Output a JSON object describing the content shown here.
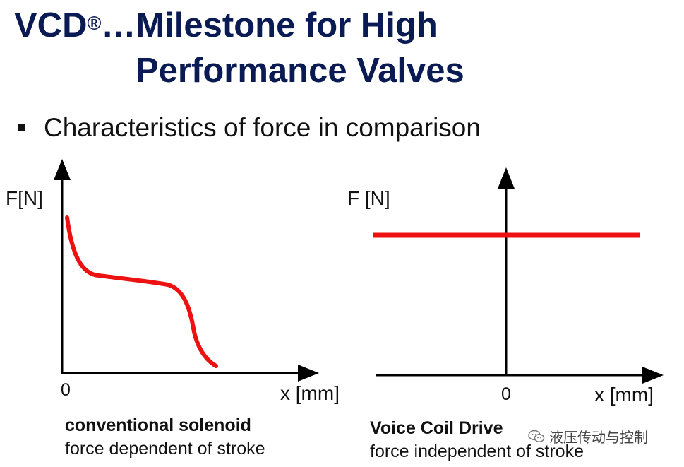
{
  "title": {
    "line1_prefix": "VCD",
    "registered": "®",
    "line1_suffix": "…Milestone for High",
    "line2": "Performance Valves"
  },
  "bullet": "Characteristics of force in comparison",
  "colors": {
    "title": "#0a1a52",
    "curve": "#ee1111",
    "axis": "#000000"
  },
  "chart_data": [
    {
      "type": "line",
      "ylabel": "F[N]",
      "xlabel": "x [mm]",
      "origin_label": "0",
      "caption_bold": "conventional solenoid",
      "caption": "force dependent of stroke",
      "description_shape": "falling-plateau-falling",
      "series": [
        {
          "points": [
            [
              0.05,
              0.98
            ],
            [
              0.18,
              0.66
            ],
            [
              0.6,
              0.56
            ],
            [
              0.8,
              0.36
            ],
            [
              1.0,
              0.06
            ]
          ]
        }
      ]
    },
    {
      "type": "line",
      "ylabel": "F [N]",
      "xlabel": "x [mm]",
      "origin_label": "0",
      "caption_bold": "Voice Coil Drive",
      "caption": "force independent of stroke",
      "series": [
        {
          "points": [
            [
              -1,
              0.73
            ],
            [
              1,
              0.73
            ]
          ]
        }
      ]
    }
  ],
  "watermark": "液压传动与控制"
}
